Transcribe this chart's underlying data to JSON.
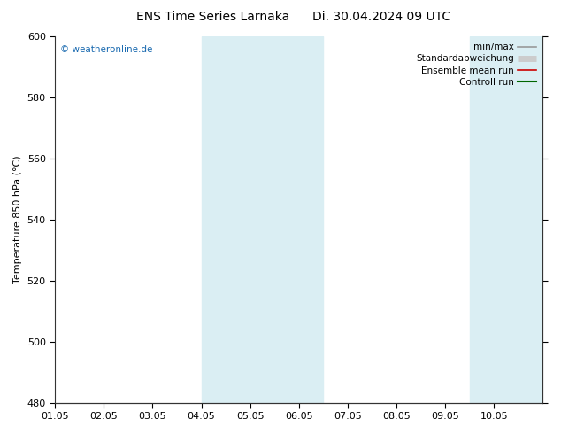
{
  "title_left": "ENS Time Series Larnaka",
  "title_right": "Di. 30.04.2024 09 UTC",
  "ylabel": "Temperature 850 hPa (°C)",
  "ylim": [
    480,
    600
  ],
  "yticks": [
    480,
    500,
    520,
    540,
    560,
    580,
    600
  ],
  "xlim_start": 0,
  "xlim_end": 10,
  "xtick_labels": [
    "01.05",
    "02.05",
    "03.05",
    "04.05",
    "05.05",
    "06.05",
    "07.05",
    "08.05",
    "09.05",
    "10.05"
  ],
  "xtick_positions": [
    0,
    1,
    2,
    3,
    4,
    5,
    6,
    7,
    8,
    9
  ],
  "shaded_bands": [
    {
      "xmin": 3.0,
      "xmax": 5.5,
      "color": "#daeef3"
    },
    {
      "xmin": 8.5,
      "xmax": 10.0,
      "color": "#daeef3"
    }
  ],
  "watermark": "© weatheronline.de",
  "watermark_color": "#1a6ab0",
  "legend_items": [
    {
      "label": "min/max",
      "color": "#999999",
      "lw": 1.2,
      "style": "minmax"
    },
    {
      "label": "Standardabweichung",
      "color": "#cccccc",
      "lw": 5,
      "style": "thick"
    },
    {
      "label": "Ensemble mean run",
      "color": "#cc0000",
      "lw": 1.2,
      "style": "line"
    },
    {
      "label": "Controll run",
      "color": "#006600",
      "lw": 1.5,
      "style": "line"
    }
  ],
  "bg_color": "#ffffff",
  "plot_bg_color": "#ffffff",
  "title_fontsize": 10,
  "axis_label_fontsize": 8,
  "tick_fontsize": 8,
  "legend_fontsize": 7.5
}
